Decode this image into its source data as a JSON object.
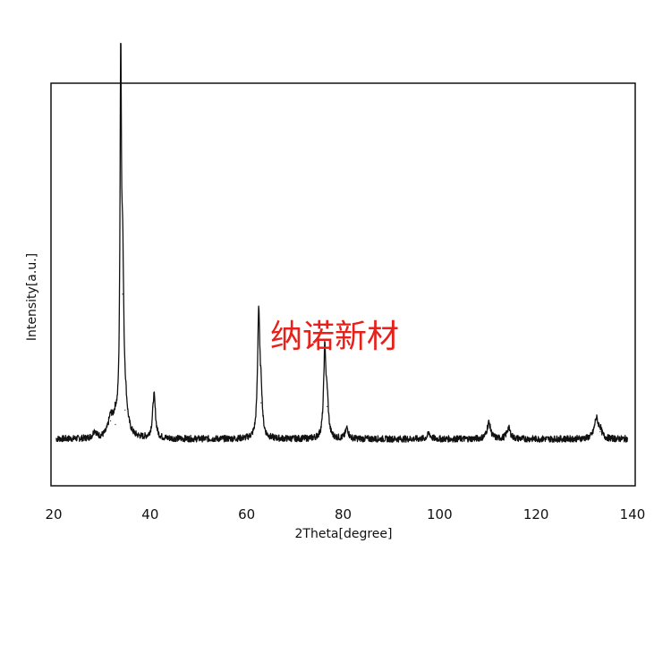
{
  "chart_data": {
    "type": "line",
    "title": "",
    "xlabel": "2Theta[degree]",
    "ylabel": "Intensity[a.u.]",
    "xlim": [
      20,
      140
    ],
    "ylim": [
      0,
      1
    ],
    "x_ticks": [
      "20",
      "40",
      "60",
      "80",
      "100",
      "120",
      "140"
    ],
    "y_ticks": [],
    "grid": false,
    "legend": "none",
    "series": [
      {
        "color": "#111111",
        "baseline": 0.06,
        "x_range": [
          20.5,
          139
        ],
        "peaks": [
          {
            "x": 28.5,
            "height": 0.02,
            "width": 0.4
          },
          {
            "x": 31.8,
            "height": 0.05,
            "width": 0.6
          },
          {
            "x": 32.8,
            "height": 0.04,
            "width": 0.5
          },
          {
            "x": 33.9,
            "height": 0.97,
            "width": 0.18
          },
          {
            "x": 34.3,
            "height": 0.4,
            "width": 0.25
          },
          {
            "x": 34.8,
            "height": 0.08,
            "width": 0.6
          },
          {
            "x": 40.8,
            "height": 0.12,
            "width": 0.35
          },
          {
            "x": 62.5,
            "height": 0.34,
            "width": 0.28
          },
          {
            "x": 63.0,
            "height": 0.1,
            "width": 0.3
          },
          {
            "x": 76.2,
            "height": 0.24,
            "width": 0.28
          },
          {
            "x": 76.7,
            "height": 0.09,
            "width": 0.3
          },
          {
            "x": 80.8,
            "height": 0.03,
            "width": 0.35
          },
          {
            "x": 97.8,
            "height": 0.015,
            "width": 0.4
          },
          {
            "x": 110.2,
            "height": 0.045,
            "width": 0.45
          },
          {
            "x": 114.3,
            "height": 0.03,
            "width": 0.45
          },
          {
            "x": 132.5,
            "height": 0.055,
            "width": 0.5
          },
          {
            "x": 133.3,
            "height": 0.02,
            "width": 0.4
          }
        ]
      }
    ]
  },
  "watermark": {
    "text": "纳诺新材",
    "color": "#e8201a"
  }
}
